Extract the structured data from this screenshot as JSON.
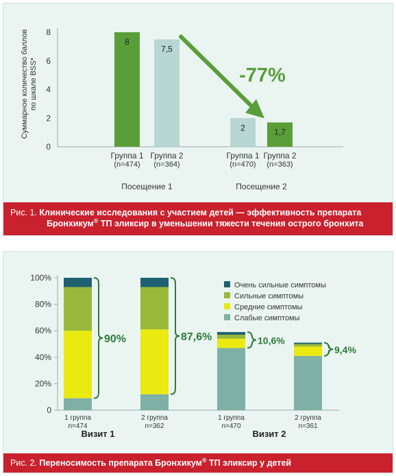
{
  "chart_data": [
    {
      "type": "bar",
      "ylabel": [
        "Суммарное количество баллов",
        "по шкале BSS*"
      ],
      "ylim": [
        0,
        8
      ],
      "yticks": [
        "0",
        "2",
        "4",
        "6",
        "8"
      ],
      "grid": false,
      "groups": [
        {
          "label": "Посещение 1",
          "bars": [
            {
              "label": "Группа 1",
              "n": "(n=474)",
              "value": 8,
              "value_label": "8",
              "color": "#5a9e3a"
            },
            {
              "label": "Группа 2",
              "n": "(n=364)",
              "value": 7.5,
              "value_label": "7,5",
              "color": "#b8d6d2"
            }
          ]
        },
        {
          "label": "Посещение 2",
          "bars": [
            {
              "label": "Группа 1",
              "n": "(n=470)",
              "value": 2,
              "value_label": "2",
              "color": "#b8d6d2"
            },
            {
              "label": "Группа 2",
              "n": "(n=363)",
              "value": 1.7,
              "value_label": "1,7",
              "color": "#5a9e3a"
            }
          ]
        }
      ],
      "annotation": "-77%",
      "annotation_color": "#5a9e3a"
    },
    {
      "type": "bar",
      "stacked": true,
      "ylim": [
        0,
        100
      ],
      "yticks": [
        "0",
        "20%",
        "40%",
        "60%",
        "80%",
        "100%"
      ],
      "grid": false,
      "legend_position": "top-right",
      "series": [
        {
          "name": "Слабые симптомы",
          "color": "#7fb0a6"
        },
        {
          "name": "Средние симптомы",
          "color": "#eaea10"
        },
        {
          "name": "Сильные симптомы",
          "color": "#9ab83a"
        },
        {
          "name": "Очень сильные симптомы",
          "color": "#1f6070"
        }
      ],
      "legend_order": [
        "Очень сильные симптомы",
        "Сильные симптомы",
        "Средние симптомы",
        "Слабые симптомы"
      ],
      "bars": [
        {
          "label": "1 группа",
          "n": "n=474",
          "values": [
            9,
            51,
            33,
            7
          ],
          "total_label": "90%",
          "visit": 0
        },
        {
          "label": "2 группа",
          "n": "n=362",
          "values": [
            12,
            49,
            32,
            7
          ],
          "total_label": "87,6%",
          "visit": 0
        },
        {
          "label": "1 группа",
          "n": "n=470",
          "values": [
            47,
            7,
            3,
            2
          ],
          "total_label": "10,6%",
          "visit": 1
        },
        {
          "label": "2 группа",
          "n": "n=361",
          "values": [
            41,
            7,
            2,
            1
          ],
          "total_label": "9,4%",
          "visit": 1
        }
      ],
      "visits": [
        "Визит 1",
        "Визит 2"
      ],
      "annotation_color": "#2e7a3a"
    }
  ],
  "captions": {
    "fig1": {
      "prefix": "Рис. 1. ",
      "line1": "Клинические исследования с участием детей — эффективность препарата",
      "line2a": "Бронхикум",
      "reg": "®",
      "line2b": " ТП эликсир в уменьшении тяжести течения острого бронхита"
    },
    "fig2": {
      "prefix": "Рис. 2. ",
      "texta": "Переносимость препарата Бронхикум",
      "reg": "®",
      "textb": " ТП эликсир у детей"
    }
  }
}
